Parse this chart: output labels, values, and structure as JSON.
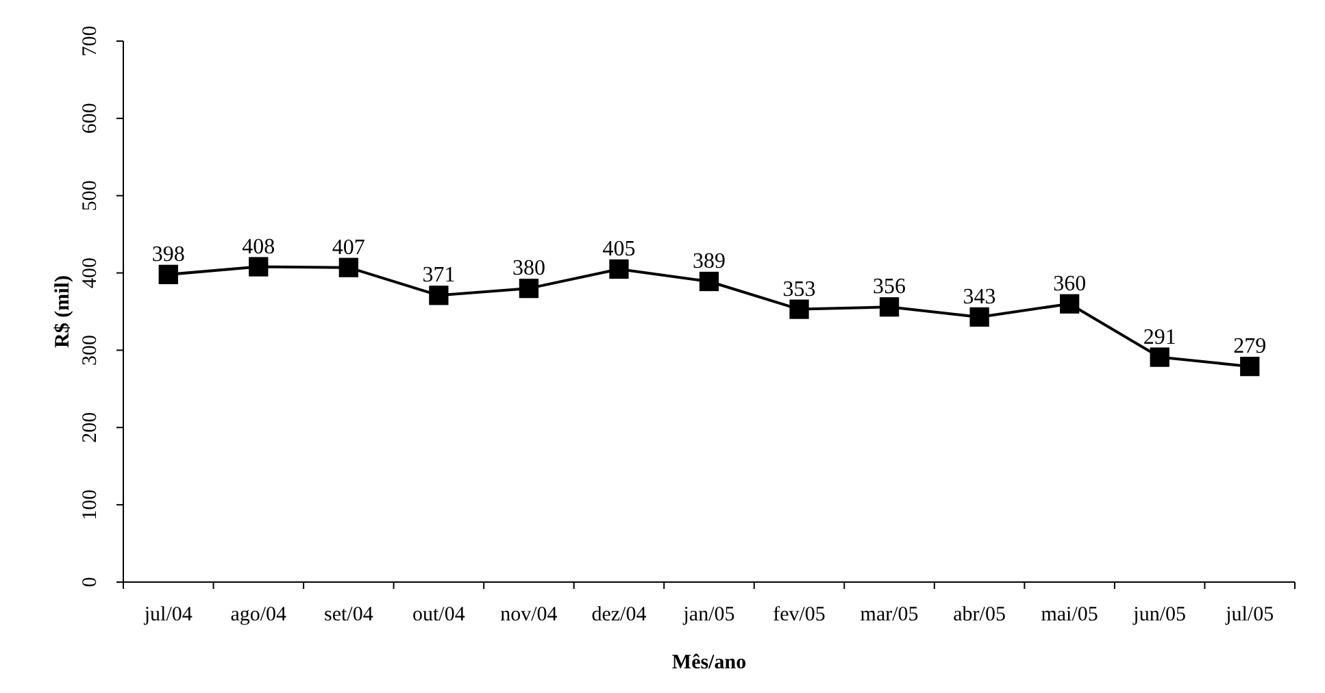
{
  "chart_data": {
    "type": "line",
    "xlabel": "Mês/ano",
    "ylabel": "R$ (mil)",
    "categories": [
      "jul/04",
      "ago/04",
      "set/04",
      "out/04",
      "nov/04",
      "dez/04",
      "jan/05",
      "fev/05",
      "mar/05",
      "abr/05",
      "mai/05",
      "jun/05",
      "jul/05"
    ],
    "series": [
      {
        "color": "#000000",
        "values": [
          398,
          408,
          407,
          371,
          380,
          405,
          389,
          353,
          356,
          343,
          360,
          291,
          279
        ]
      }
    ],
    "ylim": [
      0,
      700
    ],
    "yticks": [
      0,
      100,
      200,
      300,
      400,
      500,
      600,
      700
    ],
    "marker": "square",
    "line_style": "solid",
    "data_labels": true
  }
}
